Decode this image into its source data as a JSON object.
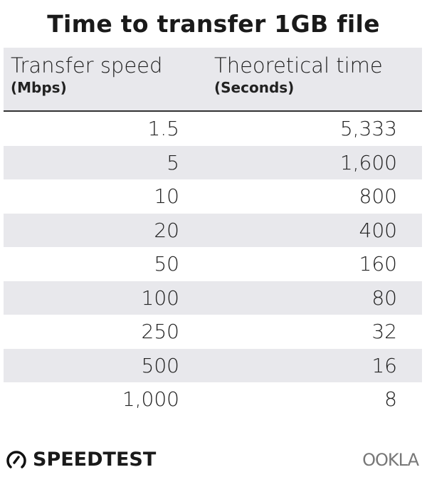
{
  "chart_data": {
    "type": "table",
    "title": "Time to transfer 1GB file",
    "columns": [
      {
        "label": "Transfer speed",
        "unit": "(Mbps)"
      },
      {
        "label": "Theoretical time",
        "unit": "(Seconds)"
      }
    ],
    "rows": [
      [
        "1.5",
        "5,333"
      ],
      [
        "5",
        "1,600"
      ],
      [
        "10",
        "800"
      ],
      [
        "20",
        "400"
      ],
      [
        "50",
        "160"
      ],
      [
        "100",
        "80"
      ],
      [
        "250",
        "32"
      ],
      [
        "500",
        "16"
      ],
      [
        "1,000",
        "8"
      ]
    ]
  },
  "branding": {
    "left": "SPEEDTEST",
    "right": "OOKLA"
  },
  "colors": {
    "header_band": "#e8e8ec",
    "alt_row": "#e8e8ec",
    "text": "#1a1a1a"
  }
}
